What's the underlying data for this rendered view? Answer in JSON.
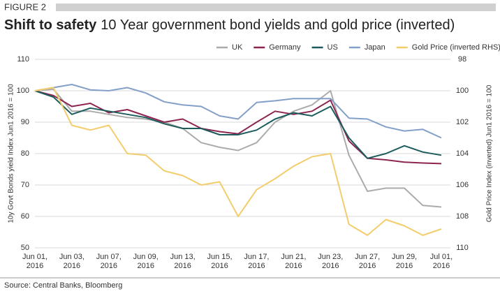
{
  "chart_data": {
    "type": "line",
    "figure_label": "FIGURE 2",
    "title": "Shift to safety",
    "subtitle": "10 Year government bond yields and gold price (inverted)",
    "source": "Source: Central Banks, Bloomberg",
    "ylabel": "10y Govt Bonds yield Index Jun1 2016 = 100",
    "y2label": "Gold Price Index (inverted) Jun1 2016 = 100",
    "categories": [
      "Jun 01, 2016",
      null,
      "Jun 03, 2016",
      null,
      "Jun 07, 2016",
      null,
      "Jun 09, 2016",
      null,
      "Jun 13, 2016",
      null,
      "Jun 15, 2016",
      null,
      "Jun 17, 2016",
      null,
      "Jun 21, 2016",
      null,
      "Jun 23, 2016",
      null,
      "Jun 27, 2016",
      null,
      "Jun 29, 2016",
      null,
      "Jul 01, 2016"
    ],
    "series": [
      {
        "name": "UK",
        "color": "#ababab",
        "values": [
          100,
          100.5,
          93.5,
          93.5,
          92.5,
          91.5,
          91,
          90,
          88,
          83.5,
          82,
          81,
          83.5,
          90,
          93.5,
          95.5,
          100,
          79.5,
          68,
          69,
          69,
          63.5,
          63
        ]
      },
      {
        "name": "Germany",
        "color": "#8c2550",
        "values": [
          100,
          98.5,
          95,
          96,
          93,
          94,
          92,
          90,
          91,
          88,
          87,
          86.3,
          90,
          93.5,
          92.5,
          93.5,
          97,
          84,
          78.5,
          78,
          77.3,
          77,
          76.8
        ]
      },
      {
        "name": "US",
        "color": "#1c5c5c",
        "values": [
          100,
          98,
          92.5,
          94.5,
          93.5,
          92.5,
          91.5,
          89.5,
          88,
          88,
          86,
          86,
          87.5,
          91,
          93,
          92,
          95,
          85,
          78.5,
          80,
          82.5,
          80.5,
          79.5
        ]
      },
      {
        "name": "Japan",
        "color": "#82a0c8",
        "values": [
          100,
          101,
          102,
          100.3,
          100,
          101,
          99.3,
          96.5,
          95.5,
          95,
          92,
          91,
          96.3,
          96.8,
          97.5,
          97.5,
          97.5,
          91.3,
          91,
          88.5,
          87.2,
          87.7,
          85
        ]
      },
      {
        "name": "Gold Price (inverted RHS)",
        "color": "#f3cd6c",
        "axis": "y2",
        "values": [
          100,
          99.8,
          102.2,
          102.5,
          102.2,
          104,
          104.1,
          105.1,
          105.4,
          106,
          105.8,
          108,
          106.3,
          105.6,
          104.8,
          104.2,
          104,
          108.5,
          109.2,
          108.2,
          108.6,
          109.2,
          108.8
        ]
      }
    ],
    "ylim": [
      50,
      110
    ],
    "yticks": [
      50,
      60,
      70,
      80,
      90,
      100,
      110
    ],
    "y2lim": [
      98,
      110
    ],
    "y2ticks": [
      98,
      100,
      102,
      104,
      106,
      108,
      110
    ],
    "y2_inverted": true,
    "grid": true,
    "legend": "top"
  }
}
